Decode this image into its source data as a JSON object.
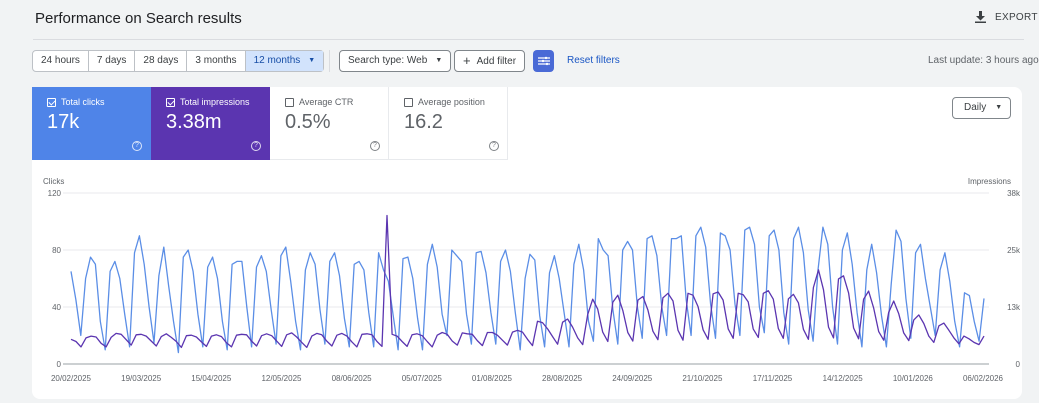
{
  "header": {
    "title": "Performance on Search results",
    "export_label": "EXPORT"
  },
  "toolbar": {
    "ranges": [
      {
        "label": "24 hours",
        "active": false
      },
      {
        "label": "7 days",
        "active": false
      },
      {
        "label": "28 days",
        "active": false
      },
      {
        "label": "3 months",
        "active": false
      },
      {
        "label": "12 months",
        "active": true
      }
    ],
    "search_type": "Search type: Web",
    "add_filter": "Add filter",
    "reset_filters": "Reset filters",
    "last_update": "Last update: 3 hours ago"
  },
  "metrics": [
    {
      "label": "Total clicks",
      "value": "17k",
      "checked": true,
      "color": "#4f84e8"
    },
    {
      "label": "Total impressions",
      "value": "3.38m",
      "checked": true,
      "color": "#5b35b0"
    },
    {
      "label": "Average CTR",
      "value": "0.5%",
      "checked": false
    },
    {
      "label": "Average position",
      "value": "16.2",
      "checked": false
    }
  ],
  "granularity": "Daily",
  "icons": {
    "export": "download-icon",
    "add_filter": "plus-icon",
    "filter_toggle": "filter-sliders-icon",
    "help": "help-circle-icon",
    "dropdown": "caret-down-icon"
  },
  "chart_data": {
    "type": "line",
    "left_axis_label": "Clicks",
    "right_axis_label": "Impressions",
    "left_ticks": [
      "120",
      "80",
      "40",
      "0"
    ],
    "right_ticks": [
      "38k",
      "25k",
      "13k",
      "0"
    ],
    "left_range": [
      0,
      120
    ],
    "right_range": [
      0,
      38000
    ],
    "x_labels": [
      "20/02/2025",
      "19/03/2025",
      "15/04/2025",
      "12/05/2025",
      "08/06/2025",
      "05/07/2025",
      "01/08/2025",
      "28/08/2025",
      "24/09/2025",
      "21/10/2025",
      "17/11/2025",
      "14/12/2025",
      "10/01/2026",
      "06/02/2026"
    ],
    "grid": true,
    "series": [
      {
        "name": "Total clicks",
        "axis": "left",
        "color": "#5b8ee6",
        "values": [
          65,
          45,
          20,
          60,
          75,
          70,
          30,
          10,
          65,
          72,
          60,
          35,
          12,
          78,
          90,
          70,
          40,
          15,
          62,
          82,
          55,
          30,
          8,
          75,
          80,
          65,
          35,
          12,
          68,
          75,
          60,
          30,
          10,
          70,
          72,
          72,
          40,
          12,
          68,
          76,
          65,
          38,
          14,
          76,
          82,
          58,
          30,
          10,
          66,
          78,
          70,
          38,
          14,
          72,
          78,
          62,
          32,
          12,
          70,
          72,
          66,
          36,
          12,
          78,
          66,
          58,
          34,
          10,
          74,
          75,
          60,
          32,
          10,
          70,
          84,
          68,
          35,
          20,
          80,
          76,
          72,
          35,
          14,
          78,
          79,
          64,
          36,
          14,
          72,
          80,
          65,
          36,
          10,
          60,
          77,
          73,
          34,
          12,
          64,
          76,
          60,
          36,
          12,
          70,
          84,
          66,
          30,
          16,
          88,
          80,
          76,
          38,
          14,
          80,
          86,
          80,
          40,
          18,
          88,
          90,
          76,
          40,
          20,
          88,
          88,
          90,
          45,
          20,
          90,
          96,
          82,
          42,
          18,
          92,
          90,
          80,
          42,
          20,
          94,
          96,
          84,
          40,
          22,
          90,
          94,
          80,
          36,
          14,
          88,
          96,
          78,
          38,
          16,
          66,
          96,
          84,
          40,
          14,
          80,
          92,
          70,
          36,
          12,
          66,
          84,
          64,
          34,
          12,
          56,
          94,
          86,
          46,
          18,
          78,
          84,
          60,
          40,
          20,
          66,
          78,
          58,
          30,
          12,
          50,
          48,
          30,
          16,
          46
        ]
      },
      {
        "name": "Total impressions",
        "axis": "right",
        "color": "#5b35b0",
        "values": [
          5500,
          5000,
          3800,
          5800,
          6200,
          6000,
          4600,
          3800,
          5900,
          6800,
          6600,
          5400,
          4200,
          6500,
          6600,
          6200,
          5100,
          4000,
          6100,
          6700,
          5900,
          5000,
          3700,
          6300,
          6400,
          6000,
          4900,
          3900,
          6200,
          6500,
          6100,
          4700,
          3800,
          6400,
          6600,
          6500,
          5100,
          4000,
          6300,
          6700,
          6300,
          5100,
          3900,
          6500,
          6900,
          6000,
          4800,
          3700,
          6200,
          6800,
          6500,
          5100,
          4000,
          6400,
          6800,
          6200,
          4900,
          3800,
          6600,
          6700,
          6500,
          5000,
          3900,
          33000,
          6600,
          6200,
          5000,
          3900,
          6500,
          6700,
          6300,
          5000,
          3800,
          6400,
          7000,
          6600,
          5100,
          4200,
          6900,
          6700,
          6600,
          5200,
          4100,
          7000,
          7000,
          6400,
          5300,
          4200,
          7100,
          7500,
          7100,
          5500,
          4100,
          9500,
          9200,
          7800,
          6100,
          4400,
          9300,
          10000,
          8200,
          5800,
          4300,
          11000,
          14400,
          12200,
          7100,
          5000,
          13700,
          15300,
          11900,
          7000,
          5100,
          14200,
          15000,
          12000,
          7300,
          5400,
          14700,
          15700,
          14000,
          7500,
          5300,
          15700,
          15300,
          12700,
          7600,
          5500,
          15600,
          16000,
          14200,
          7800,
          5700,
          15700,
          15400,
          13800,
          7800,
          5900,
          15700,
          16300,
          14400,
          7900,
          5700,
          14500,
          15500,
          13600,
          7700,
          5500,
          17000,
          20900,
          16500,
          8200,
          5800,
          18900,
          19600,
          15800,
          8000,
          5600,
          14400,
          16200,
          12500,
          7200,
          5300,
          11500,
          14000,
          11200,
          6900,
          5200,
          9800,
          10900,
          9000,
          6200,
          4800,
          8500,
          9100,
          7500,
          5800,
          4500,
          6200,
          5600,
          4800,
          4300,
          6200
        ]
      }
    ]
  }
}
